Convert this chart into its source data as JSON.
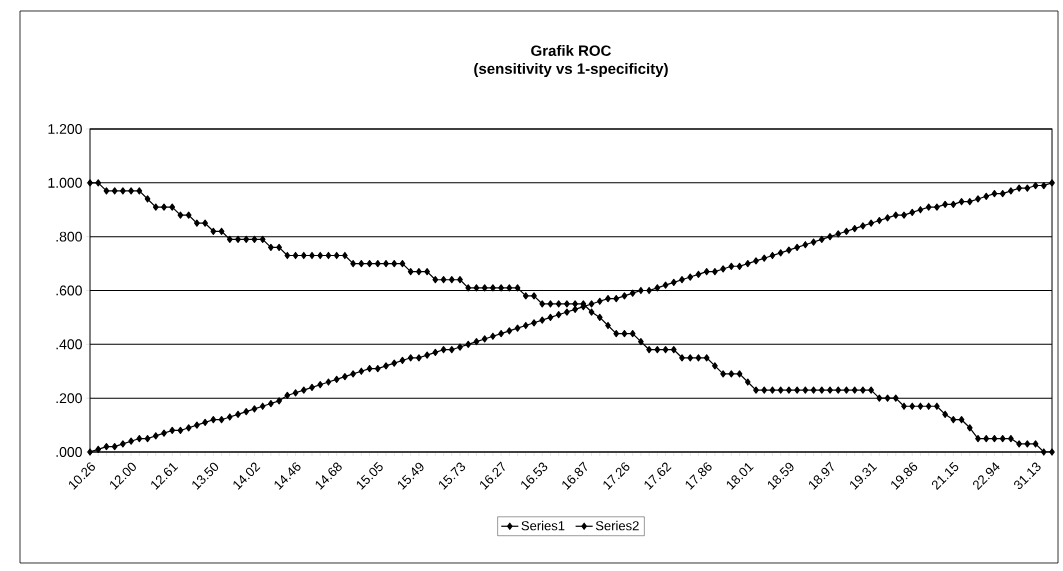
{
  "chart_data": {
    "type": "line",
    "title": "Grafik ROC",
    "subtitle": "(sensitivity vs 1-specificity)",
    "categories": [
      "10.26",
      null,
      null,
      null,
      null,
      "12.00",
      null,
      null,
      null,
      null,
      "12.61",
      null,
      null,
      null,
      null,
      "13.50",
      null,
      null,
      null,
      null,
      "14.02",
      null,
      null,
      null,
      null,
      "14.46",
      null,
      null,
      null,
      null,
      "14.68",
      null,
      null,
      null,
      null,
      "15.05",
      null,
      null,
      null,
      null,
      "15.49",
      null,
      null,
      null,
      null,
      "15.73",
      null,
      null,
      null,
      null,
      "16.27",
      null,
      null,
      null,
      null,
      "16.53",
      null,
      null,
      null,
      null,
      "16.87",
      null,
      null,
      null,
      null,
      "17.26",
      null,
      null,
      null,
      null,
      "17.62",
      null,
      null,
      null,
      null,
      "17.86",
      null,
      null,
      null,
      null,
      "18.01",
      null,
      null,
      null,
      null,
      "18.59",
      null,
      null,
      null,
      null,
      "18.97",
      null,
      null,
      null,
      null,
      "19.31",
      null,
      null,
      null,
      null,
      "19.86",
      null,
      null,
      null,
      null,
      "21.15",
      null,
      null,
      null,
      null,
      "22.94",
      null,
      null,
      null,
      null,
      "31.13",
      null,
      null
    ],
    "series": [
      {
        "name": "Series1",
        "color": "#000000",
        "values": [
          0,
          0.01,
          0.02,
          0.02,
          0.03,
          0.04,
          0.05,
          0.05,
          0.06,
          0.07,
          0.08,
          0.08,
          0.09,
          0.1,
          0.11,
          0.12,
          0.12,
          0.13,
          0.14,
          0.15,
          0.16,
          0.17,
          0.18,
          0.19,
          0.21,
          0.22,
          0.23,
          0.24,
          0.25,
          0.26,
          0.27,
          0.28,
          0.29,
          0.3,
          0.31,
          0.31,
          0.32,
          0.33,
          0.34,
          0.35,
          0.35,
          0.36,
          0.37,
          0.38,
          0.38,
          0.39,
          0.4,
          0.41,
          0.42,
          0.43,
          0.44,
          0.45,
          0.46,
          0.47,
          0.48,
          0.49,
          0.5,
          0.51,
          0.52,
          0.53,
          0.54,
          0.55,
          0.56,
          0.57,
          0.57,
          0.58,
          0.59,
          0.6,
          0.6,
          0.61,
          0.62,
          0.63,
          0.64,
          0.65,
          0.66,
          0.67,
          0.67,
          0.68,
          0.69,
          0.69,
          0.7,
          0.71,
          0.72,
          0.73,
          0.74,
          0.75,
          0.76,
          0.77,
          0.78,
          0.79,
          0.8,
          0.81,
          0.82,
          0.83,
          0.84,
          0.85,
          0.86,
          0.87,
          0.88,
          0.88,
          0.89,
          0.9,
          0.91,
          0.91,
          0.92,
          0.92,
          0.93,
          0.93,
          0.94,
          0.95,
          0.96,
          0.96,
          0.97,
          0.98,
          0.98,
          0.99,
          0.99,
          1.0
        ]
      },
      {
        "name": "Series2",
        "color": "#000000",
        "values": [
          1.0,
          1.0,
          0.97,
          0.97,
          0.97,
          0.97,
          0.97,
          0.94,
          0.91,
          0.91,
          0.91,
          0.88,
          0.88,
          0.85,
          0.85,
          0.82,
          0.82,
          0.79,
          0.79,
          0.79,
          0.79,
          0.79,
          0.76,
          0.76,
          0.73,
          0.73,
          0.73,
          0.73,
          0.73,
          0.73,
          0.73,
          0.73,
          0.7,
          0.7,
          0.7,
          0.7,
          0.7,
          0.7,
          0.7,
          0.67,
          0.67,
          0.67,
          0.64,
          0.64,
          0.64,
          0.64,
          0.61,
          0.61,
          0.61,
          0.61,
          0.61,
          0.61,
          0.61,
          0.58,
          0.58,
          0.55,
          0.55,
          0.55,
          0.55,
          0.55,
          0.55,
          0.52,
          0.5,
          0.47,
          0.44,
          0.44,
          0.44,
          0.41,
          0.38,
          0.38,
          0.38,
          0.38,
          0.35,
          0.35,
          0.35,
          0.35,
          0.32,
          0.29,
          0.29,
          0.29,
          0.26,
          0.23,
          0.23,
          0.23,
          0.23,
          0.23,
          0.23,
          0.23,
          0.23,
          0.23,
          0.23,
          0.23,
          0.23,
          0.23,
          0.23,
          0.23,
          0.2,
          0.2,
          0.2,
          0.17,
          0.17,
          0.17,
          0.17,
          0.17,
          0.14,
          0.12,
          0.12,
          0.09,
          0.05,
          0.05,
          0.05,
          0.05,
          0.05,
          0.03,
          0.03,
          0.03,
          0.0,
          0.0
        ]
      }
    ],
    "ylim": [
      0,
      1.2
    ],
    "yticks": [
      {
        "value": 0,
        "label": ".000"
      },
      {
        "value": 0.2,
        "label": ".200"
      },
      {
        "value": 0.4,
        "label": ".400"
      },
      {
        "value": 0.6,
        "label": ".600"
      },
      {
        "value": 0.8,
        "label": ".800"
      },
      {
        "value": 1.0,
        "label": "1.000"
      },
      {
        "value": 1.2,
        "label": "1.200"
      }
    ],
    "grid": "y",
    "legend": "bottom",
    "marker": "diamond"
  }
}
